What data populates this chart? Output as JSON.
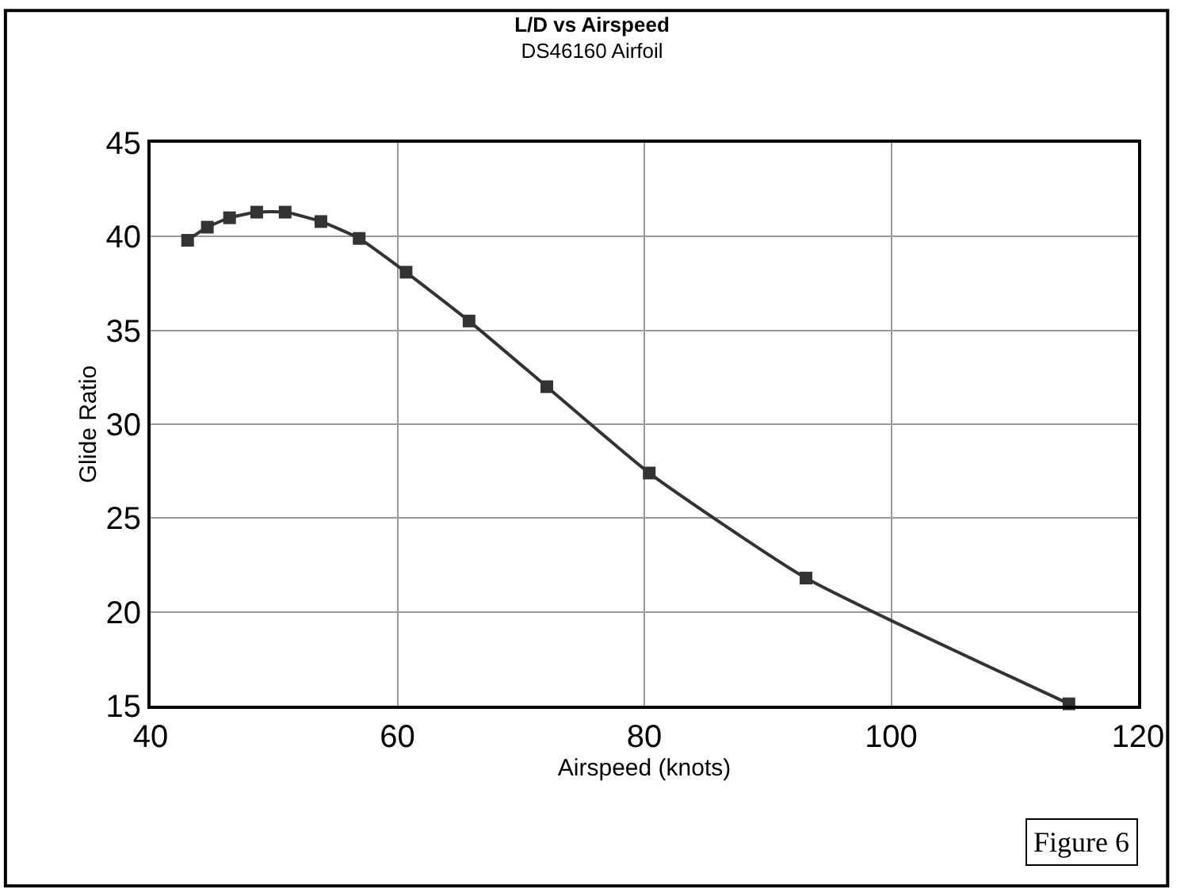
{
  "chart_data": {
    "type": "line",
    "title": "L/D vs Airspeed",
    "subtitle": "DS46160 Airfoil",
    "xlabel": "Airspeed (knots)",
    "ylabel": "Glide Ratio",
    "x": [
      43.0,
      44.6,
      46.4,
      48.6,
      50.9,
      53.8,
      56.9,
      60.7,
      65.8,
      72.1,
      80.4,
      93.1,
      114.4
    ],
    "series": [
      {
        "color": "#333333",
        "values": [
          39.8,
          40.5,
          41.0,
          41.3,
          41.3,
          40.8,
          39.9,
          38.1,
          35.5,
          32.0,
          27.4,
          21.8,
          15.1
        ]
      }
    ],
    "xlim": [
      40,
      120
    ],
    "xticks": [
      40,
      60,
      80,
      100,
      120
    ],
    "ylim": [
      15,
      45
    ],
    "yticks": [
      15,
      20,
      25,
      30,
      35,
      40,
      45
    ],
    "grid": true,
    "marker": "square",
    "line_style": "solid",
    "legend": false,
    "annotations": [
      "Figure 6"
    ]
  }
}
